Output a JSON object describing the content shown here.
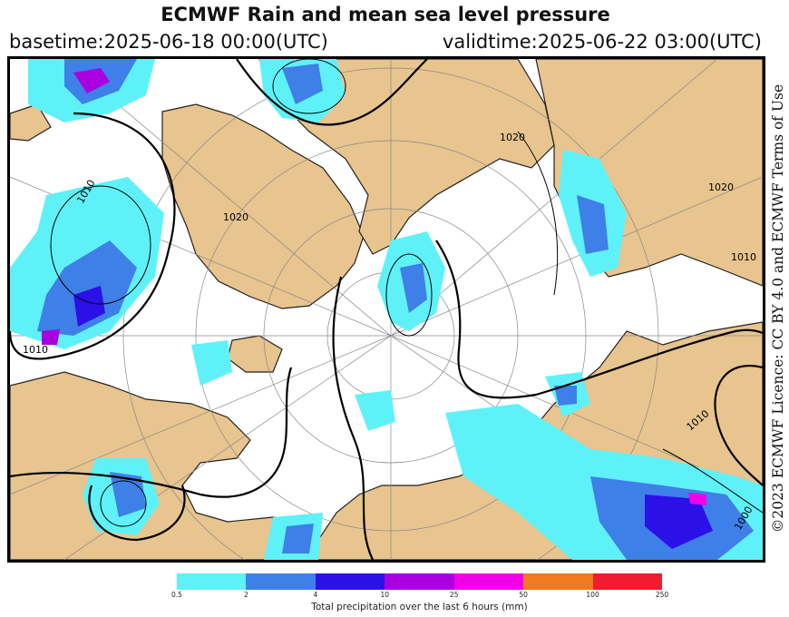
{
  "header": {
    "title": "ECMWF Rain and mean sea level pressure",
    "basetime": "basetime:2025-06-18 00:00(UTC)",
    "validtime": "validtime:2025-06-22 03:00(UTC)"
  },
  "side_text": "©2023 ECMWF Licence: CC BY 4.0 and ECMWF Terms of Use",
  "map": {
    "isobar_labels": [
      "1020",
      "1020",
      "1010",
      "1010",
      "1010",
      "1000",
      "1020",
      "1010"
    ],
    "colors": {
      "land": "#e8c48e",
      "sea": "#ffffff",
      "isobar": "#000000"
    }
  },
  "legend": {
    "label": "Total precipitation over the last 6 hours (mm)",
    "ticks": [
      "0.5",
      "2",
      "4",
      "10",
      "25",
      "50",
      "100",
      "250"
    ],
    "colors": [
      "#5ef2f8",
      "#3f7fe8",
      "#2c10e8",
      "#aa00e0",
      "#f000e8",
      "#f07a20",
      "#f01c30"
    ]
  }
}
